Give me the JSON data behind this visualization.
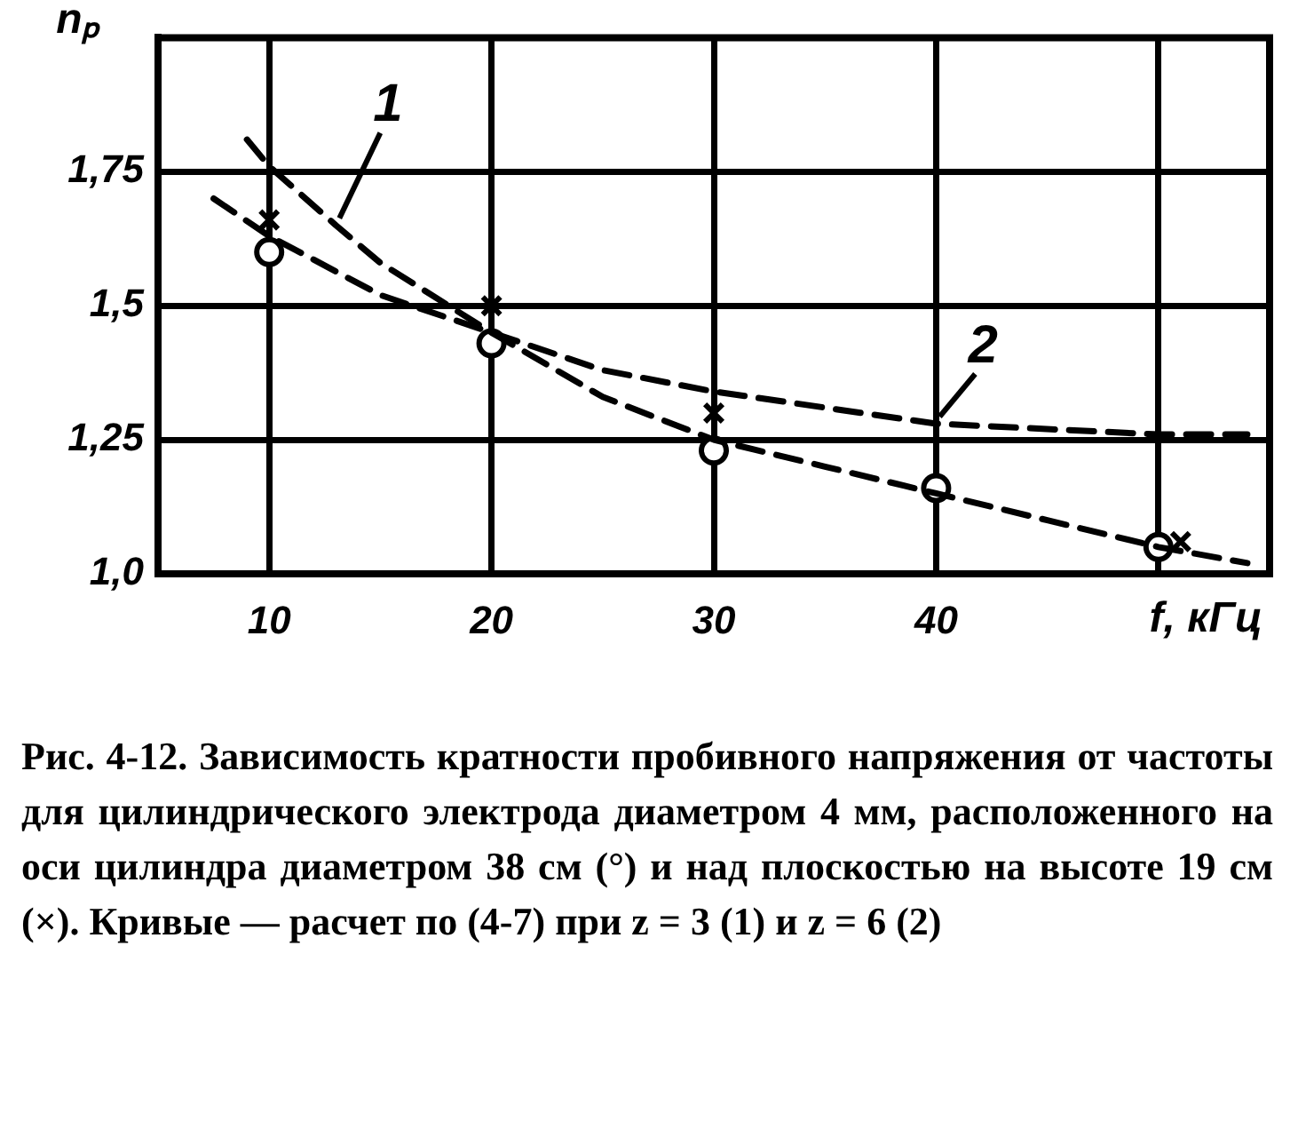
{
  "chart_data": {
    "type": "line",
    "xlabel": "f, кГц",
    "ylabel": "nₚ",
    "xlim": [
      5,
      55
    ],
    "ylim": [
      1.0,
      2.0
    ],
    "xticks": [
      10,
      20,
      30,
      40,
      {
        "value": 50,
        "label": null
      }
    ],
    "yticks": [
      {
        "value": 1.0,
        "label": "1,0"
      },
      {
        "value": 1.25,
        "label": "1,25"
      },
      {
        "value": 1.5,
        "label": "1,5"
      },
      {
        "value": 1.75,
        "label": "1,75"
      },
      {
        "value": 2.0,
        "label": null
      }
    ],
    "grid": true,
    "series": [
      {
        "name": "1",
        "type": "line",
        "color": "#000000",
        "line_style": "dashed",
        "marker": "none",
        "x": [
          9,
          10,
          13,
          15,
          20,
          25,
          30,
          35,
          40,
          45,
          50,
          54
        ],
        "values": [
          1.81,
          1.76,
          1.65,
          1.58,
          1.45,
          1.33,
          1.25,
          1.2,
          1.15,
          1.1,
          1.05,
          1.02
        ]
      },
      {
        "name": "2",
        "type": "line",
        "color": "#000000",
        "line_style": "dashed",
        "marker": "none",
        "x": [
          7.5,
          10,
          15,
          20,
          25,
          30,
          40,
          50,
          54
        ],
        "values": [
          1.7,
          1.63,
          1.52,
          1.45,
          1.38,
          1.34,
          1.28,
          1.26,
          1.26
        ]
      },
      {
        "type": "scatter",
        "color": "#000000",
        "marker": "circle",
        "x": [
          10,
          20,
          30,
          40,
          50
        ],
        "values": [
          1.6,
          1.43,
          1.23,
          1.16,
          1.05
        ]
      },
      {
        "type": "scatter",
        "color": "#000000",
        "marker": "cross",
        "x": [
          10,
          20,
          30,
          51
        ],
        "values": [
          1.66,
          1.5,
          1.3,
          1.06
        ]
      }
    ],
    "annotations": [
      "Рис. 4-12. Зависимость кратности пробивного напряжения от частоты для цилиндрического электрода диаметром 4 мм, расположенного на оси цилиндра диаметром 38 см (°) и над плоскостью на высоте 19 см (×). Кривые — расчет по (4-7) при z = 3 (1) и z = 6 (2)"
    ]
  }
}
